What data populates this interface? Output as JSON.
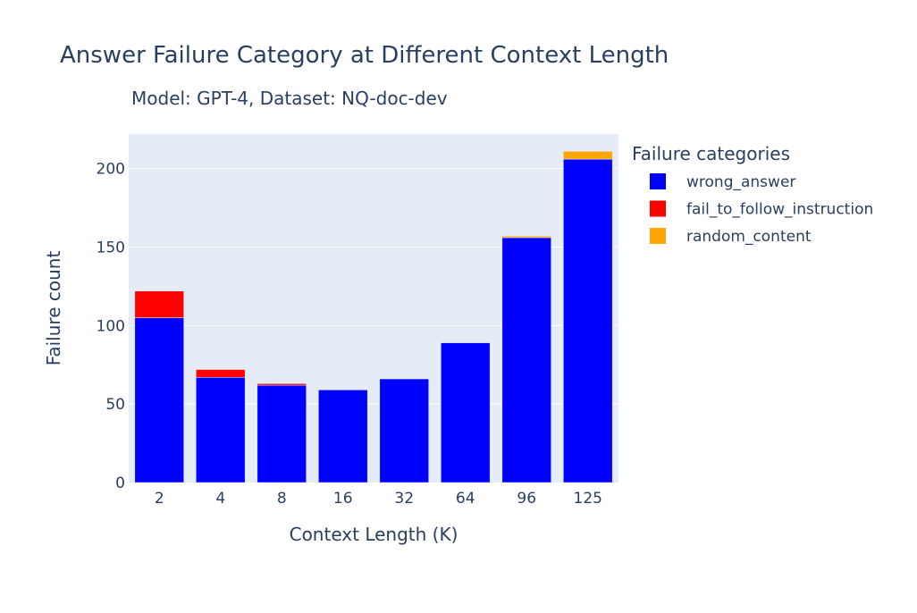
{
  "chart_data": {
    "type": "bar",
    "barmode": "stack",
    "title": "Answer Failure Category at Different Context Length",
    "subtitle": "Model: GPT-4, Dataset: NQ-doc-dev",
    "xlabel": "Context Length (K)",
    "ylabel": "Failure count",
    "categories": [
      "2",
      "4",
      "8",
      "16",
      "32",
      "64",
      "96",
      "125"
    ],
    "ylim": [
      0,
      222
    ],
    "yticks": [
      0,
      50,
      100,
      150,
      200
    ],
    "grid": true,
    "legend_title": "Failure categories",
    "legend_position": "right",
    "series": [
      {
        "name": "wrong_answer",
        "color": "#0000ff",
        "values": [
          105,
          67,
          62,
          59,
          66,
          89,
          156,
          206
        ]
      },
      {
        "name": "fail_to_follow_instruction",
        "color": "#ff0000",
        "values": [
          17,
          5,
          1,
          0,
          0,
          0,
          0,
          0
        ]
      },
      {
        "name": "random_content",
        "color": "#ffa500",
        "values": [
          0,
          0,
          0,
          0,
          0,
          0,
          1,
          5
        ]
      }
    ]
  }
}
